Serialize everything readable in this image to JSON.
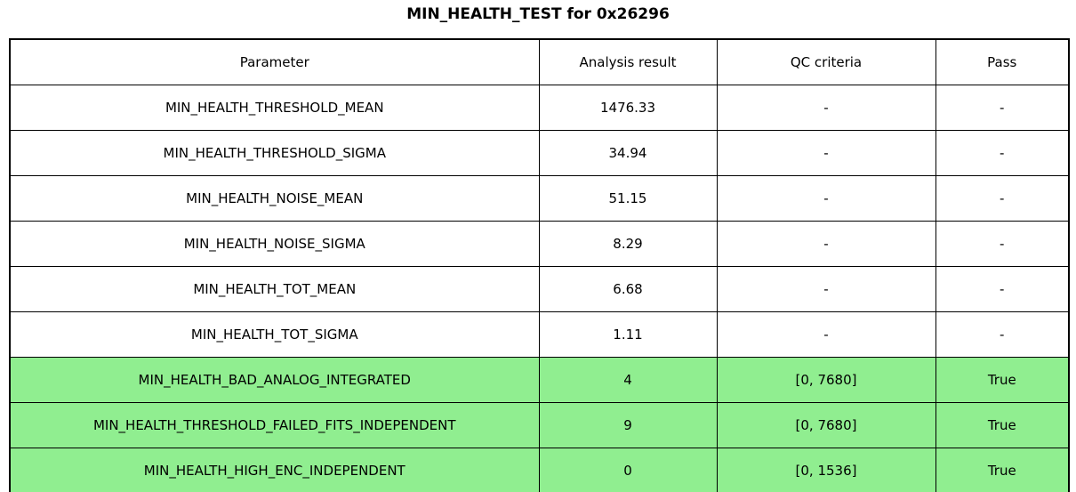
{
  "title": "MIN_HEALTH_TEST for 0x26296",
  "colors": {
    "highlight_green": "#90EE90",
    "border": "#000000",
    "background": "#ffffff"
  },
  "chart_data": {
    "type": "table",
    "title": "MIN_HEALTH_TEST for 0x26296",
    "columns": [
      "Parameter",
      "Analysis result",
      "QC criteria",
      "Pass"
    ],
    "rows": [
      {
        "cells": [
          "MIN_HEALTH_THRESHOLD_MEAN",
          "1476.33",
          "-",
          "-"
        ],
        "highlight": false
      },
      {
        "cells": [
          "MIN_HEALTH_THRESHOLD_SIGMA",
          "34.94",
          "-",
          "-"
        ],
        "highlight": false
      },
      {
        "cells": [
          "MIN_HEALTH_NOISE_MEAN",
          "51.15",
          "-",
          "-"
        ],
        "highlight": false
      },
      {
        "cells": [
          "MIN_HEALTH_NOISE_SIGMA",
          "8.29",
          "-",
          "-"
        ],
        "highlight": false
      },
      {
        "cells": [
          "MIN_HEALTH_TOT_MEAN",
          "6.68",
          "-",
          "-"
        ],
        "highlight": false
      },
      {
        "cells": [
          "MIN_HEALTH_TOT_SIGMA",
          "1.11",
          "-",
          "-"
        ],
        "highlight": false
      },
      {
        "cells": [
          "MIN_HEALTH_BAD_ANALOG_INTEGRATED",
          "4",
          "[0, 7680]",
          "True"
        ],
        "highlight": true
      },
      {
        "cells": [
          "MIN_HEALTH_THRESHOLD_FAILED_FITS_INDEPENDENT",
          "9",
          "[0, 7680]",
          "True"
        ],
        "highlight": true
      },
      {
        "cells": [
          "MIN_HEALTH_HIGH_ENC_INDEPENDENT",
          "0",
          "[0, 1536]",
          "True"
        ],
        "highlight": true
      }
    ],
    "highlighted_row_indices": [
      6,
      7,
      8
    ],
    "highlight_color": "#90EE90",
    "legend_position": "none",
    "grid": true
  }
}
